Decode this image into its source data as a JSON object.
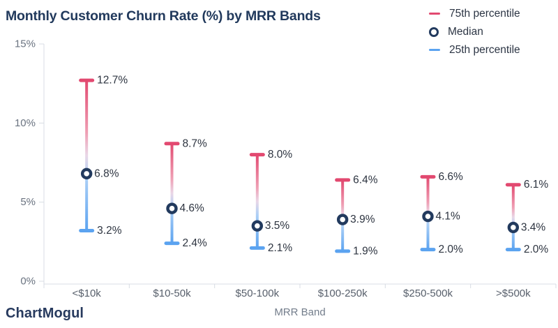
{
  "title": "Monthly Customer Churn Rate (%) by MRR Bands",
  "brand": "ChartMogul",
  "legend": {
    "items": [
      {
        "label": "75th percentile",
        "marker": "pink-dash"
      },
      {
        "label": "Median",
        "marker": "navy-ring"
      },
      {
        "label": "25th percentile",
        "marker": "blue-dash"
      }
    ]
  },
  "colors": {
    "title": "#21395c",
    "brand": "#273a5e",
    "p75": "#e24970",
    "p25": "#5ba3f0",
    "median_ring": "#223a5e",
    "axis": "#d8dce4",
    "tick_text": "#6a7380",
    "category_text": "#575f6b",
    "data_label": "#2d3440",
    "legend_text": "#2c3544",
    "xlabel_text": "#737d8b"
  },
  "chart_data": {
    "type": "scatter",
    "variant": "percentile-range-whisker",
    "title": "Monthly Customer Churn Rate (%) by MRR Bands",
    "categories": [
      "<$10k",
      "$10-50k",
      "$50-100k",
      "$100-250k",
      "$250-500k",
      ">$500k"
    ],
    "series": [
      {
        "name": "75th percentile",
        "values": [
          12.7,
          8.7,
          8.0,
          6.4,
          6.6,
          6.1
        ]
      },
      {
        "name": "Median",
        "values": [
          6.8,
          4.6,
          3.5,
          3.9,
          4.1,
          3.4
        ]
      },
      {
        "name": "25th percentile",
        "values": [
          3.2,
          2.4,
          2.1,
          1.9,
          2.0,
          2.0
        ]
      }
    ],
    "xlabel": "MRR Band",
    "ylabel": "",
    "ylim": [
      0,
      15
    ],
    "yticks": [
      0,
      5,
      10,
      15
    ],
    "ytick_suffix": "%",
    "value_suffix": "%",
    "grid": false,
    "legend_position": "top-right"
  }
}
